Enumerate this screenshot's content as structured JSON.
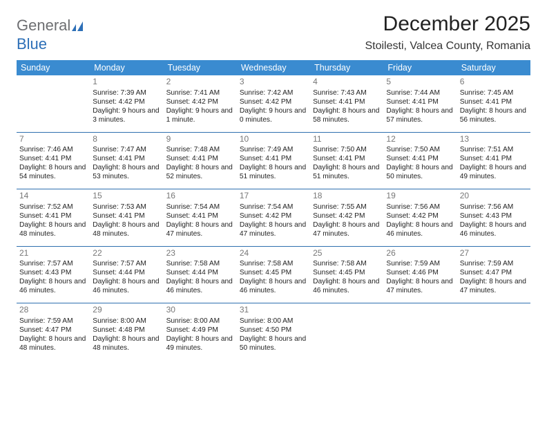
{
  "logo": {
    "part1": "General",
    "part2": "Blue"
  },
  "title": "December 2025",
  "location": "Stoilesti, Valcea County, Romania",
  "header_bg": "#3a8bd0",
  "rule_color": "#2e6faf",
  "weekdays": [
    "Sunday",
    "Monday",
    "Tuesday",
    "Wednesday",
    "Thursday",
    "Friday",
    "Saturday"
  ],
  "weeks": [
    [
      {
        "n": "",
        "sr": "",
        "ss": "",
        "dl": ""
      },
      {
        "n": "1",
        "sr": "Sunrise: 7:39 AM",
        "ss": "Sunset: 4:42 PM",
        "dl": "Daylight: 9 hours and 3 minutes."
      },
      {
        "n": "2",
        "sr": "Sunrise: 7:41 AM",
        "ss": "Sunset: 4:42 PM",
        "dl": "Daylight: 9 hours and 1 minute."
      },
      {
        "n": "3",
        "sr": "Sunrise: 7:42 AM",
        "ss": "Sunset: 4:42 PM",
        "dl": "Daylight: 9 hours and 0 minutes."
      },
      {
        "n": "4",
        "sr": "Sunrise: 7:43 AM",
        "ss": "Sunset: 4:41 PM",
        "dl": "Daylight: 8 hours and 58 minutes."
      },
      {
        "n": "5",
        "sr": "Sunrise: 7:44 AM",
        "ss": "Sunset: 4:41 PM",
        "dl": "Daylight: 8 hours and 57 minutes."
      },
      {
        "n": "6",
        "sr": "Sunrise: 7:45 AM",
        "ss": "Sunset: 4:41 PM",
        "dl": "Daylight: 8 hours and 56 minutes."
      }
    ],
    [
      {
        "n": "7",
        "sr": "Sunrise: 7:46 AM",
        "ss": "Sunset: 4:41 PM",
        "dl": "Daylight: 8 hours and 54 minutes."
      },
      {
        "n": "8",
        "sr": "Sunrise: 7:47 AM",
        "ss": "Sunset: 4:41 PM",
        "dl": "Daylight: 8 hours and 53 minutes."
      },
      {
        "n": "9",
        "sr": "Sunrise: 7:48 AM",
        "ss": "Sunset: 4:41 PM",
        "dl": "Daylight: 8 hours and 52 minutes."
      },
      {
        "n": "10",
        "sr": "Sunrise: 7:49 AM",
        "ss": "Sunset: 4:41 PM",
        "dl": "Daylight: 8 hours and 51 minutes."
      },
      {
        "n": "11",
        "sr": "Sunrise: 7:50 AM",
        "ss": "Sunset: 4:41 PM",
        "dl": "Daylight: 8 hours and 51 minutes."
      },
      {
        "n": "12",
        "sr": "Sunrise: 7:50 AM",
        "ss": "Sunset: 4:41 PM",
        "dl": "Daylight: 8 hours and 50 minutes."
      },
      {
        "n": "13",
        "sr": "Sunrise: 7:51 AM",
        "ss": "Sunset: 4:41 PM",
        "dl": "Daylight: 8 hours and 49 minutes."
      }
    ],
    [
      {
        "n": "14",
        "sr": "Sunrise: 7:52 AM",
        "ss": "Sunset: 4:41 PM",
        "dl": "Daylight: 8 hours and 48 minutes."
      },
      {
        "n": "15",
        "sr": "Sunrise: 7:53 AM",
        "ss": "Sunset: 4:41 PM",
        "dl": "Daylight: 8 hours and 48 minutes."
      },
      {
        "n": "16",
        "sr": "Sunrise: 7:54 AM",
        "ss": "Sunset: 4:41 PM",
        "dl": "Daylight: 8 hours and 47 minutes."
      },
      {
        "n": "17",
        "sr": "Sunrise: 7:54 AM",
        "ss": "Sunset: 4:42 PM",
        "dl": "Daylight: 8 hours and 47 minutes."
      },
      {
        "n": "18",
        "sr": "Sunrise: 7:55 AM",
        "ss": "Sunset: 4:42 PM",
        "dl": "Daylight: 8 hours and 47 minutes."
      },
      {
        "n": "19",
        "sr": "Sunrise: 7:56 AM",
        "ss": "Sunset: 4:42 PM",
        "dl": "Daylight: 8 hours and 46 minutes."
      },
      {
        "n": "20",
        "sr": "Sunrise: 7:56 AM",
        "ss": "Sunset: 4:43 PM",
        "dl": "Daylight: 8 hours and 46 minutes."
      }
    ],
    [
      {
        "n": "21",
        "sr": "Sunrise: 7:57 AM",
        "ss": "Sunset: 4:43 PM",
        "dl": "Daylight: 8 hours and 46 minutes."
      },
      {
        "n": "22",
        "sr": "Sunrise: 7:57 AM",
        "ss": "Sunset: 4:44 PM",
        "dl": "Daylight: 8 hours and 46 minutes."
      },
      {
        "n": "23",
        "sr": "Sunrise: 7:58 AM",
        "ss": "Sunset: 4:44 PM",
        "dl": "Daylight: 8 hours and 46 minutes."
      },
      {
        "n": "24",
        "sr": "Sunrise: 7:58 AM",
        "ss": "Sunset: 4:45 PM",
        "dl": "Daylight: 8 hours and 46 minutes."
      },
      {
        "n": "25",
        "sr": "Sunrise: 7:58 AM",
        "ss": "Sunset: 4:45 PM",
        "dl": "Daylight: 8 hours and 46 minutes."
      },
      {
        "n": "26",
        "sr": "Sunrise: 7:59 AM",
        "ss": "Sunset: 4:46 PM",
        "dl": "Daylight: 8 hours and 47 minutes."
      },
      {
        "n": "27",
        "sr": "Sunrise: 7:59 AM",
        "ss": "Sunset: 4:47 PM",
        "dl": "Daylight: 8 hours and 47 minutes."
      }
    ],
    [
      {
        "n": "28",
        "sr": "Sunrise: 7:59 AM",
        "ss": "Sunset: 4:47 PM",
        "dl": "Daylight: 8 hours and 48 minutes."
      },
      {
        "n": "29",
        "sr": "Sunrise: 8:00 AM",
        "ss": "Sunset: 4:48 PM",
        "dl": "Daylight: 8 hours and 48 minutes."
      },
      {
        "n": "30",
        "sr": "Sunrise: 8:00 AM",
        "ss": "Sunset: 4:49 PM",
        "dl": "Daylight: 8 hours and 49 minutes."
      },
      {
        "n": "31",
        "sr": "Sunrise: 8:00 AM",
        "ss": "Sunset: 4:50 PM",
        "dl": "Daylight: 8 hours and 50 minutes."
      },
      {
        "n": "",
        "sr": "",
        "ss": "",
        "dl": ""
      },
      {
        "n": "",
        "sr": "",
        "ss": "",
        "dl": ""
      },
      {
        "n": "",
        "sr": "",
        "ss": "",
        "dl": ""
      }
    ]
  ]
}
